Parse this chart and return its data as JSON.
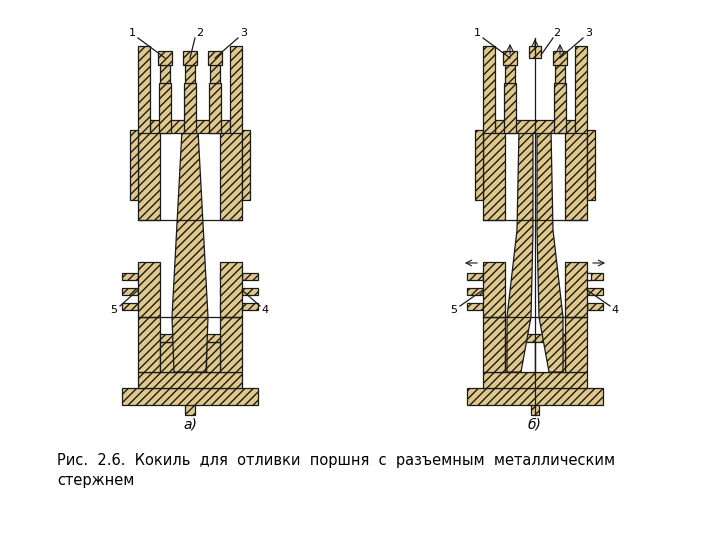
{
  "bg_color": "#ffffff",
  "line_color": "#1a1a1a",
  "hatch_fill": "#dfc88a",
  "white_fill": "#ffffff",
  "label_a": "а)",
  "label_b": "б)",
  "caption_line1": "Рис.  2.6.  Кокиль  для  отливки  поршня  с  разъемным  металлическим",
  "caption_line2": "стержнем",
  "LCX": 190,
  "RCX": 535
}
